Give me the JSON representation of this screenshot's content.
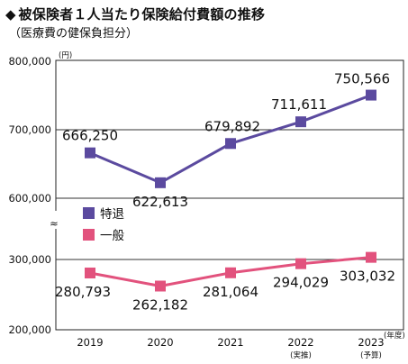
{
  "title_marker": "◆",
  "title": "被保険者１人当たり保険給付費額の推移",
  "subtitle": "（医療費の健保負担分）",
  "chart_data": {
    "type": "line",
    "unit": "(円)",
    "x": [
      "2019",
      "2020",
      "2021",
      "2022",
      "2023"
    ],
    "x_sublabels": [
      "",
      "",
      "",
      "(実推)",
      "(予算)"
    ],
    "x_unit": "(年度)",
    "y_ticks": [
      "800,000",
      "700,000",
      "600,000",
      "300,000",
      "200,000"
    ],
    "ylim": [
      200000,
      800000
    ],
    "axis_break": "≈",
    "legend_position": "left-middle",
    "grid": true,
    "series": [
      {
        "name": "特退",
        "color": "#5b4a9f",
        "values": [
          666250,
          622613,
          679892,
          711611,
          750566
        ],
        "labels": [
          "666,250",
          "622,613",
          "679,892",
          "711,611",
          "750,566"
        ]
      },
      {
        "name": "一般",
        "color": "#e2527d",
        "values": [
          280793,
          262182,
          281064,
          294029,
          303032
        ],
        "labels": [
          "280,793",
          "262,182",
          "281,064",
          "294,029",
          "303,032"
        ]
      }
    ]
  }
}
